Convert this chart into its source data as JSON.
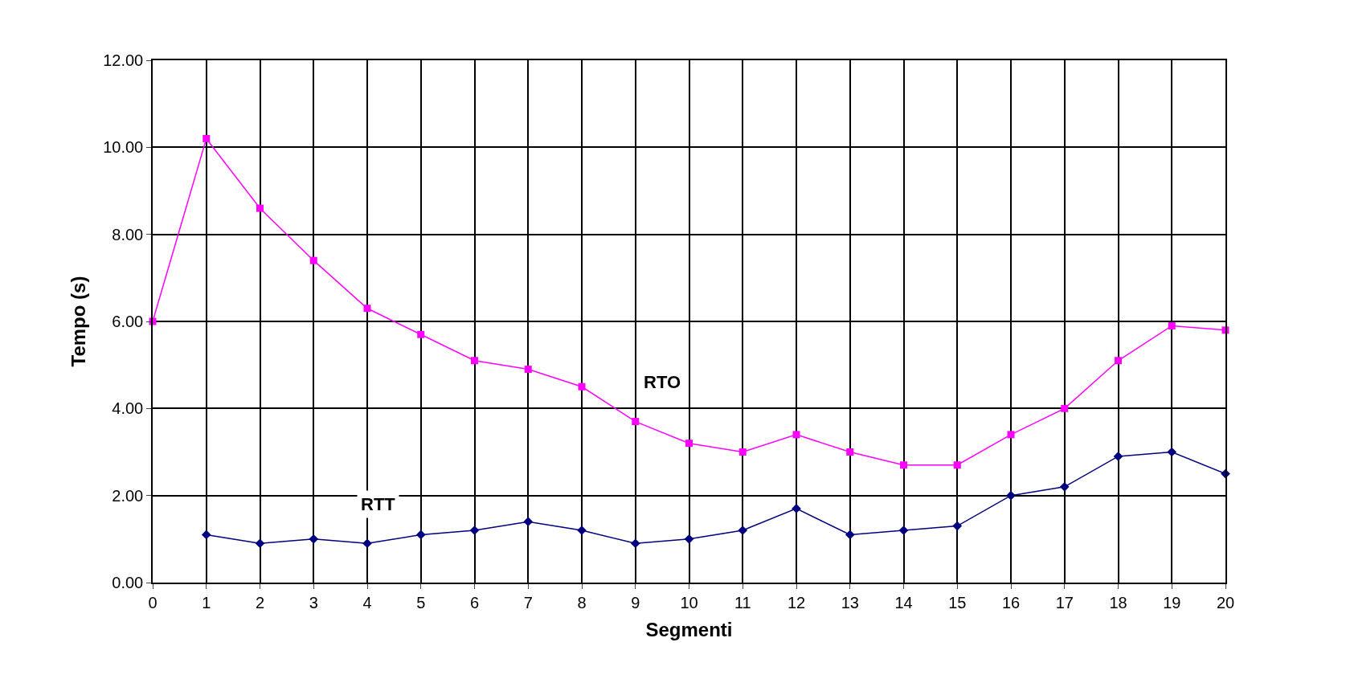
{
  "chart_data": {
    "type": "line",
    "xlabel": "Segmenti",
    "ylabel": "Tempo (s)",
    "x": [
      0,
      1,
      2,
      3,
      4,
      5,
      6,
      7,
      8,
      9,
      10,
      11,
      12,
      13,
      14,
      15,
      16,
      17,
      18,
      19,
      20
    ],
    "series": [
      {
        "name": "RTO",
        "color": "#ff00ff",
        "marker": "square",
        "values": [
          6.0,
          10.2,
          8.6,
          7.4,
          6.3,
          5.7,
          5.1,
          4.9,
          4.5,
          3.7,
          3.2,
          3.0,
          3.4,
          3.0,
          2.7,
          2.7,
          3.4,
          4.0,
          5.1,
          5.9,
          5.8
        ]
      },
      {
        "name": "RTT",
        "color": "#000080",
        "marker": "diamond",
        "values": [
          null,
          1.1,
          0.9,
          1.0,
          0.9,
          1.1,
          1.2,
          1.4,
          1.2,
          0.9,
          1.0,
          1.2,
          1.7,
          1.1,
          1.2,
          1.3,
          2.0,
          2.2,
          2.9,
          3.0,
          2.5
        ]
      }
    ],
    "xlim": [
      0,
      20
    ],
    "xticks": [
      0,
      1,
      2,
      3,
      4,
      5,
      6,
      7,
      8,
      9,
      10,
      11,
      12,
      13,
      14,
      15,
      16,
      17,
      18,
      19,
      20
    ],
    "ylim": [
      0,
      12
    ],
    "yticks": [
      {
        "value": 0,
        "label": "0.00"
      },
      {
        "value": 2,
        "label": "2.00"
      },
      {
        "value": 4,
        "label": "4.00"
      },
      {
        "value": 6,
        "label": "6.00"
      },
      {
        "value": 8,
        "label": "8.00"
      },
      {
        "value": 10,
        "label": "10.00"
      },
      {
        "value": 12,
        "label": "12.00"
      }
    ],
    "grid": true,
    "legend": false
  }
}
